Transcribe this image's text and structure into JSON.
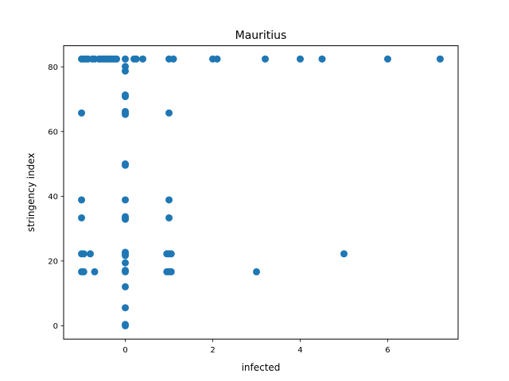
{
  "chart_data": {
    "type": "scatter",
    "title": "Mauritius",
    "xlabel": "infected",
    "ylabel": "stringency index",
    "xlim": [
      -1.41,
      7.61
    ],
    "ylim": [
      -4.12,
      86.52
    ],
    "xticks": [
      0,
      2,
      4,
      6
    ],
    "yticks": [
      0,
      20,
      40,
      60,
      80
    ],
    "grid": false,
    "legend": "none",
    "marker_color": "#1f77b4",
    "series": [
      {
        "points": [
          [
            -1,
            82.41
          ],
          [
            -0.95,
            82.41
          ],
          [
            -0.9,
            82.41
          ],
          [
            -0.85,
            82.41
          ],
          [
            -0.75,
            82.41
          ],
          [
            -0.7,
            82.41
          ],
          [
            -0.6,
            82.41
          ],
          [
            -0.55,
            82.41
          ],
          [
            -0.5,
            82.41
          ],
          [
            -0.45,
            82.41
          ],
          [
            -0.4,
            82.41
          ],
          [
            -0.35,
            82.41
          ],
          [
            -0.3,
            82.41
          ],
          [
            -0.25,
            82.41
          ],
          [
            -0.2,
            82.41
          ],
          [
            0,
            82.41
          ],
          [
            0.2,
            82.41
          ],
          [
            0.25,
            82.41
          ],
          [
            0.4,
            82.41
          ],
          [
            1,
            82.41
          ],
          [
            1.1,
            82.41
          ],
          [
            2,
            82.41
          ],
          [
            2.1,
            82.41
          ],
          [
            3.2,
            82.41
          ],
          [
            4,
            82.41
          ],
          [
            4.5,
            82.41
          ],
          [
            6,
            82.41
          ],
          [
            7.2,
            82.41
          ],
          [
            0,
            80.1
          ],
          [
            0,
            78.7
          ],
          [
            0,
            71.3
          ],
          [
            0,
            70.8
          ],
          [
            -1,
            65.74
          ],
          [
            0,
            65.74
          ],
          [
            0,
            66.2
          ],
          [
            0,
            65.3
          ],
          [
            1,
            65.74
          ],
          [
            0,
            50.0
          ],
          [
            0,
            49.6
          ],
          [
            -1,
            38.89
          ],
          [
            0,
            38.89
          ],
          [
            1,
            38.89
          ],
          [
            -1,
            33.33
          ],
          [
            0,
            33.33
          ],
          [
            0,
            33.7
          ],
          [
            0,
            32.9
          ],
          [
            1,
            33.33
          ],
          [
            -1,
            22.22
          ],
          [
            -0.95,
            22.22
          ],
          [
            -0.8,
            22.22
          ],
          [
            0,
            22.22
          ],
          [
            0,
            22.7
          ],
          [
            0,
            21.7
          ],
          [
            0.95,
            22.22
          ],
          [
            1,
            22.22
          ],
          [
            1.05,
            22.22
          ],
          [
            5,
            22.22
          ],
          [
            0,
            19.44
          ],
          [
            -1,
            16.67
          ],
          [
            -0.95,
            16.67
          ],
          [
            -0.7,
            16.67
          ],
          [
            0,
            16.67
          ],
          [
            0,
            17.1
          ],
          [
            0.95,
            16.67
          ],
          [
            1,
            16.67
          ],
          [
            1.05,
            16.67
          ],
          [
            3,
            16.67
          ],
          [
            0,
            12.04
          ],
          [
            0,
            5.56
          ],
          [
            0,
            0.0
          ],
          [
            0,
            0.4
          ]
        ]
      }
    ]
  }
}
